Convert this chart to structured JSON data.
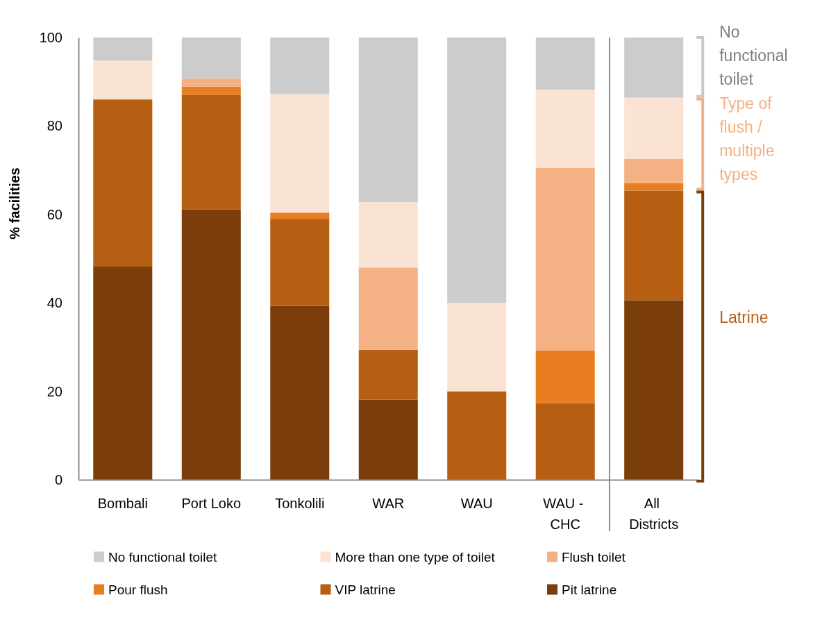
{
  "chart_data": {
    "type": "bar",
    "stacked": true,
    "ylabel": "% facilities",
    "categories": [
      "Bombali",
      "Port Loko",
      "Tonkolili",
      "WAR",
      "WAU",
      "WAU - CHC",
      "All Districts"
    ],
    "series": [
      {
        "name": "Pit latrine",
        "color": "#7b3e0b",
        "values": [
          48.2,
          61.1,
          39.3,
          18.1,
          0,
          0,
          40.6
        ]
      },
      {
        "name": "VIP latrine",
        "color": "#b65f12",
        "values": [
          37.8,
          25.9,
          19.7,
          11.3,
          20,
          17.3,
          24.8
        ]
      },
      {
        "name": "Pour flush",
        "color": "#e97e21",
        "values": [
          0,
          1.9,
          1.4,
          0,
          0,
          11.9,
          1.7
        ]
      },
      {
        "name": "Flush toilet",
        "color": "#f4b183",
        "values": [
          0,
          1.8,
          0,
          18.6,
          0,
          41.3,
          5.5
        ]
      },
      {
        "name": "More than one type of toilet",
        "color": "#fbe3d3",
        "values": [
          8.8,
          0,
          26.8,
          14.8,
          20,
          17.7,
          13.8
        ]
      },
      {
        "name": "No functional toilet",
        "color": "#cccccc",
        "values": [
          5.2,
          9.3,
          12.8,
          37.2,
          60,
          11.8,
          13.6
        ]
      }
    ],
    "ylim": [
      0,
      100
    ],
    "yticks": [
      0,
      20,
      40,
      60,
      80,
      100
    ],
    "legend": "bottom",
    "annotations": [
      "No functional toilet",
      "Type of flush / multiple types",
      "Latrine"
    ]
  }
}
